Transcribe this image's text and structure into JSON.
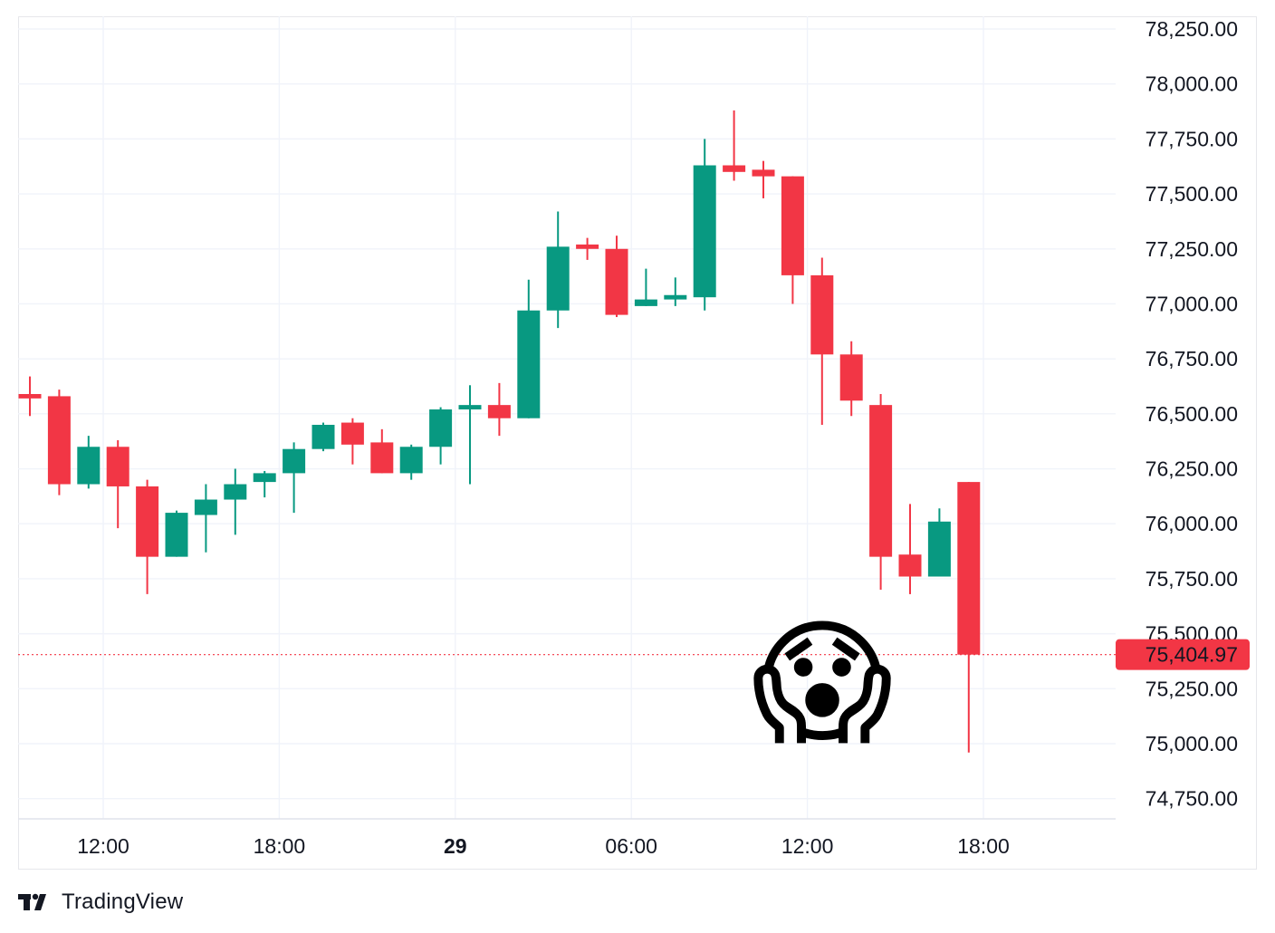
{
  "chart_data": {
    "type": "candlestick",
    "y_ticks": [
      "78,250.00",
      "78,000.00",
      "77,750.00",
      "77,500.00",
      "77,250.00",
      "77,000.00",
      "76,750.00",
      "76,500.00",
      "76,250.00",
      "76,000.00",
      "75,750.00",
      "75,500.00",
      "75,250.00",
      "75,000.00",
      "74,750.00"
    ],
    "y_tick_values": [
      78250,
      78000,
      77750,
      77500,
      77250,
      77000,
      76750,
      76500,
      76250,
      76000,
      75750,
      75500,
      75250,
      75000,
      74750
    ],
    "x_ticks": [
      {
        "label": "12:00",
        "bold": false,
        "index": 2.5
      },
      {
        "label": "18:00",
        "bold": false,
        "index": 8.5
      },
      {
        "label": "29",
        "bold": true,
        "index": 14.5
      },
      {
        "label": "06:00",
        "bold": false,
        "index": 20.5
      },
      {
        "label": "12:00",
        "bold": false,
        "index": 26.5
      },
      {
        "label": "18:00",
        "bold": false,
        "index": 32.5
      }
    ],
    "last_price": {
      "value": 75404.97,
      "label": "75,404.97"
    },
    "colors": {
      "up": "#089981",
      "down": "#f23645",
      "grid": "#f0f3fa",
      "axis_text": "#131722"
    },
    "candles": [
      {
        "o": 76590,
        "h": 76670,
        "l": 76490,
        "c": 76570
      },
      {
        "o": 76580,
        "h": 76610,
        "l": 76130,
        "c": 76180
      },
      {
        "o": 76180,
        "h": 76400,
        "l": 76160,
        "c": 76350
      },
      {
        "o": 76350,
        "h": 76380,
        "l": 75980,
        "c": 76170
      },
      {
        "o": 76170,
        "h": 76200,
        "l": 75680,
        "c": 75850
      },
      {
        "o": 75850,
        "h": 76060,
        "l": 75850,
        "c": 76050
      },
      {
        "o": 76040,
        "h": 76180,
        "l": 75870,
        "c": 76110
      },
      {
        "o": 76110,
        "h": 76250,
        "l": 75950,
        "c": 76180
      },
      {
        "o": 76190,
        "h": 76240,
        "l": 76120,
        "c": 76230
      },
      {
        "o": 76230,
        "h": 76370,
        "l": 76050,
        "c": 76340
      },
      {
        "o": 76340,
        "h": 76460,
        "l": 76330,
        "c": 76450
      },
      {
        "o": 76460,
        "h": 76480,
        "l": 76270,
        "c": 76360
      },
      {
        "o": 76370,
        "h": 76430,
        "l": 76230,
        "c": 76230
      },
      {
        "o": 76230,
        "h": 76360,
        "l": 76200,
        "c": 76350
      },
      {
        "o": 76350,
        "h": 76530,
        "l": 76270,
        "c": 76520
      },
      {
        "o": 76520,
        "h": 76630,
        "l": 76180,
        "c": 76540
      },
      {
        "o": 76540,
        "h": 76640,
        "l": 76400,
        "c": 76480
      },
      {
        "o": 76480,
        "h": 77110,
        "l": 76480,
        "c": 76970
      },
      {
        "o": 76970,
        "h": 77420,
        "l": 76890,
        "c": 77260
      },
      {
        "o": 77270,
        "h": 77300,
        "l": 77200,
        "c": 77250
      },
      {
        "o": 77250,
        "h": 77310,
        "l": 76940,
        "c": 76950
      },
      {
        "o": 76990,
        "h": 77160,
        "l": 76990,
        "c": 77020
      },
      {
        "o": 77020,
        "h": 77120,
        "l": 76990,
        "c": 77040
      },
      {
        "o": 77030,
        "h": 77750,
        "l": 76970,
        "c": 77630
      },
      {
        "o": 77630,
        "h": 77880,
        "l": 77560,
        "c": 77600
      },
      {
        "o": 77610,
        "h": 77650,
        "l": 77480,
        "c": 77580
      },
      {
        "o": 77580,
        "h": 77580,
        "l": 77000,
        "c": 77130
      },
      {
        "o": 77130,
        "h": 77210,
        "l": 76450,
        "c": 76770
      },
      {
        "o": 76770,
        "h": 76830,
        "l": 76490,
        "c": 76560
      },
      {
        "o": 76540,
        "h": 76590,
        "l": 75700,
        "c": 75850
      },
      {
        "o": 75860,
        "h": 76090,
        "l": 75680,
        "c": 75760
      },
      {
        "o": 75760,
        "h": 76070,
        "l": 75760,
        "c": 76010
      },
      {
        "o": 76190,
        "h": 76190,
        "l": 74960,
        "c": 75405
      }
    ]
  },
  "overlay": {
    "emoji": "😱",
    "icon": "face-screaming-in-fear-icon"
  },
  "branding": {
    "name": "TradingView"
  }
}
